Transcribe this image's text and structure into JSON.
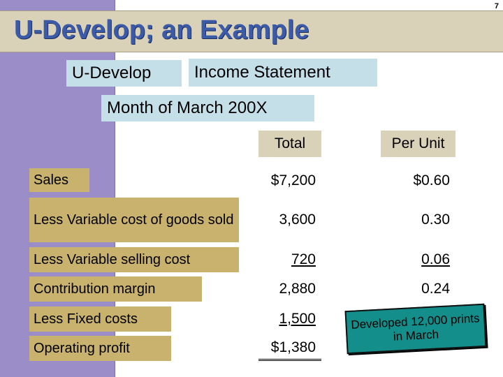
{
  "slide": {
    "page_number": "7",
    "title": "U-Develop; an Example"
  },
  "statement": {
    "company": "U-Develop",
    "report_name": "Income Statement",
    "period": "Month of March 200X",
    "columns": [
      "Total",
      "Per Unit"
    ],
    "rows": [
      {
        "label": "Sales",
        "total": "$7,200",
        "per_unit": "$0.60"
      },
      {
        "label": "Less Variable cost of goods sold",
        "total": "3,600",
        "per_unit": "0.30"
      },
      {
        "label": "Less Variable selling cost",
        "total": "720",
        "per_unit": "0.06"
      },
      {
        "label": "Contribution margin",
        "total": "2,880",
        "per_unit": "0.24"
      },
      {
        "label": "Less Fixed costs",
        "total": "1,500",
        "per_unit": ""
      },
      {
        "label": "Operating profit",
        "total": "$1,380",
        "per_unit": ""
      }
    ]
  },
  "note": {
    "text": "Developed 12,000 prints in March"
  },
  "colors": {
    "sidebar": "#9b8ec8",
    "banner": "#d9d1b8",
    "title": "#3b5aa8",
    "header_boxes": "#c5dfe9",
    "label_boxes": "#c8b26e",
    "note_box": "#138e8a"
  }
}
